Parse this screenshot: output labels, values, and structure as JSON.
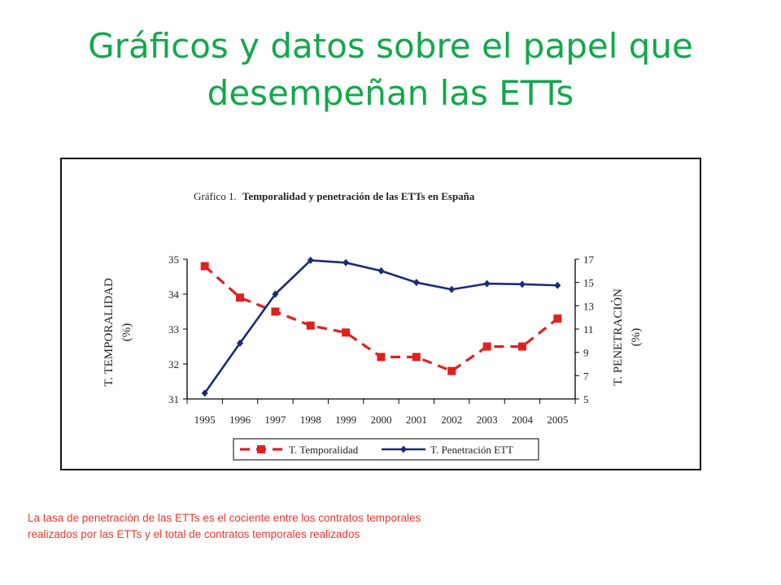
{
  "slide": {
    "title_line1": "Gráficos y datos sobre el papel que",
    "title_line2": "desempeñan las ETTs",
    "title_color": "#12a84b",
    "footnote_line1": "La tasa de penetración de las ETTs es el cociente entre los contratos temporales",
    "footnote_line2": "realizados por las ETTs y el total de contratos temporales realizados",
    "footnote_color": "#e8392e"
  },
  "chart_data": {
    "type": "line",
    "title_prefix": "Gráfico 1.",
    "title": "Temporalidad y penetración de las ETTs en España",
    "x": [
      "1995",
      "1996",
      "1997",
      "1998",
      "1999",
      "2000",
      "2001",
      "2002",
      "2003",
      "2004",
      "2005"
    ],
    "y_left_label_line1": "T. TEMPORALIDAD",
    "y_left_label_line2": "(%)",
    "y_left_ticks": [
      "35",
      "34",
      "33",
      "32",
      "31"
    ],
    "y_left_lim": [
      31,
      35
    ],
    "y_right_label_line1": "T. PENETRACIÓN",
    "y_right_label_line2": "(%)",
    "y_right_ticks": [
      "17",
      "15",
      "13",
      "11",
      "9",
      "7",
      "5"
    ],
    "y_right_lim": [
      5,
      17
    ],
    "grid": false,
    "legend_position": "bottom",
    "series": [
      {
        "name": "T. Temporalidad",
        "axis": "left",
        "style": "dashed-square",
        "color": "#e02020",
        "values": [
          34.8,
          33.9,
          33.5,
          33.1,
          32.9,
          32.2,
          32.2,
          31.8,
          32.5,
          32.5,
          33.3
        ]
      },
      {
        "name": "T. Penetración ETT",
        "axis": "right",
        "style": "solid-diamond",
        "color": "#1c2a78",
        "values": [
          5.5,
          9.8,
          14.0,
          16.9,
          16.7,
          16.0,
          15.0,
          14.4,
          14.9,
          14.85,
          14.75
        ]
      }
    ]
  }
}
